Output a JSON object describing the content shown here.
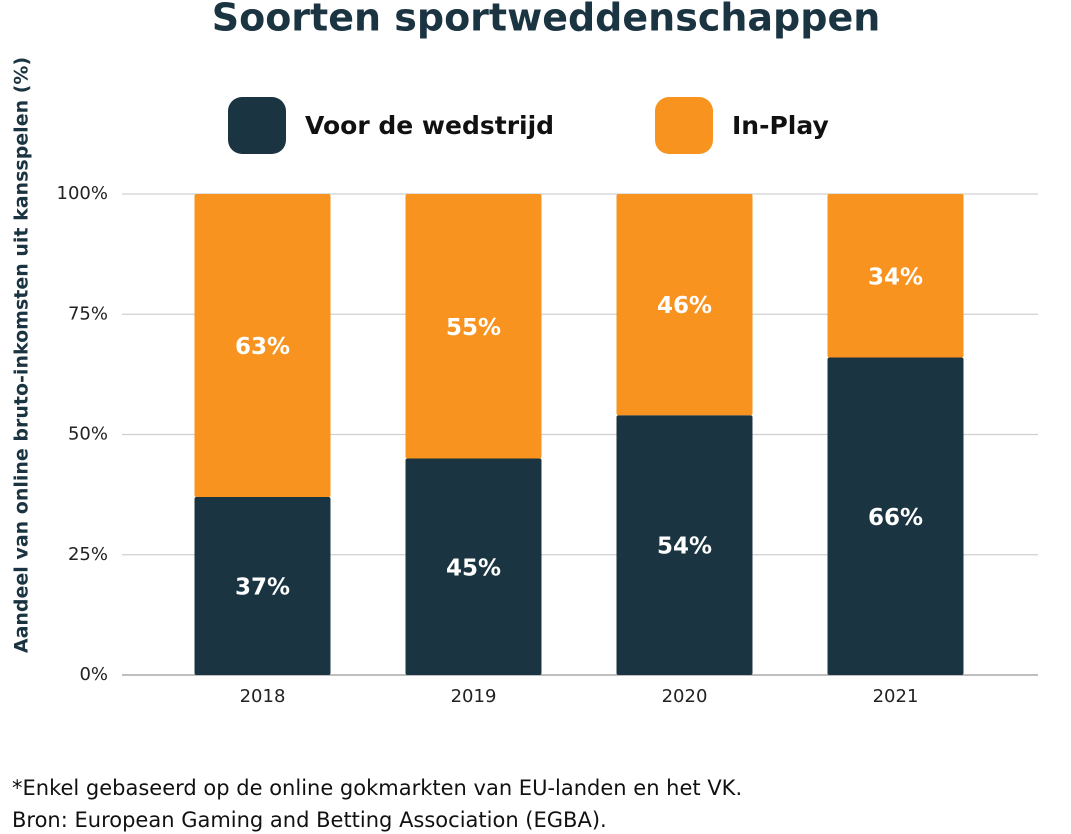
{
  "chart_data": {
    "type": "stacked-bar",
    "title": "Soorten sportweddenschappen",
    "y_label": "Aandeel van online bruto-inkomsten uit kansspelen (%)",
    "categories": [
      "2018",
      "2019",
      "2020",
      "2021"
    ],
    "series": [
      {
        "name": "Voor de wedstrijd",
        "color": "#1b3441",
        "values": [
          37,
          45,
          54,
          66
        ],
        "value_labels": [
          "37%",
          "45%",
          "54%",
          "66%"
        ]
      },
      {
        "name": "In-Play",
        "color": "#f7931e",
        "values": [
          63,
          55,
          46,
          34
        ],
        "value_labels": [
          "63%",
          "55%",
          "46%",
          "34%"
        ]
      }
    ],
    "ylim": [
      0,
      100
    ],
    "yticks": [
      {
        "value": 0,
        "label": "0%"
      },
      {
        "value": 25,
        "label": "25%"
      },
      {
        "value": 50,
        "label": "50%"
      },
      {
        "value": 75,
        "label": "75%"
      },
      {
        "value": 100,
        "label": "100%"
      }
    ],
    "grid": true,
    "legend": "top",
    "notes": [
      "*Enkel gebaseerd op de online gokmarkten van EU-landen en het VK.",
      "Bron: European Gaming and Betting Association (EGBA)."
    ]
  }
}
